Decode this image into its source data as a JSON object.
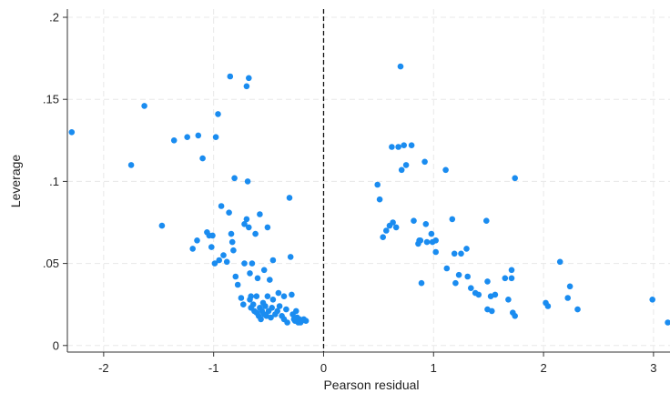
{
  "chart_data": {
    "type": "scatter",
    "title": "",
    "xlabel": "Pearson residual",
    "ylabel": "Leverage",
    "xlim": [
      -2.33,
      3.15
    ],
    "ylim": [
      -0.004,
      0.205
    ],
    "x_ticks": [
      -2,
      -1,
      0,
      1,
      2,
      3
    ],
    "x_tick_labels": [
      "-2",
      "-1",
      "0",
      "1",
      "2",
      "3"
    ],
    "y_ticks": [
      0,
      0.05,
      0.1,
      0.15,
      0.2
    ],
    "y_tick_labels": [
      "0",
      ".05",
      ".1",
      ".15",
      ".2"
    ],
    "grid": true,
    "reference_line_x": 0,
    "marker_color": "#1a8cf0",
    "points": [
      [
        -2.29,
        0.13
      ],
      [
        -1.75,
        0.11
      ],
      [
        -1.63,
        0.146
      ],
      [
        -1.47,
        0.073
      ],
      [
        -1.36,
        0.125
      ],
      [
        -1.24,
        0.127
      ],
      [
        -1.19,
        0.059
      ],
      [
        -1.15,
        0.064
      ],
      [
        -1.14,
        0.128
      ],
      [
        -1.1,
        0.114
      ],
      [
        -1.06,
        0.069
      ],
      [
        -1.04,
        0.067
      ],
      [
        -1.02,
        0.06
      ],
      [
        -1.01,
        0.067
      ],
      [
        -0.99,
        0.05
      ],
      [
        -0.98,
        0.127
      ],
      [
        -0.96,
        0.141
      ],
      [
        -0.95,
        0.052
      ],
      [
        -0.93,
        0.085
      ],
      [
        -0.91,
        0.055
      ],
      [
        -0.88,
        0.051
      ],
      [
        -0.86,
        0.081
      ],
      [
        -0.85,
        0.164
      ],
      [
        -0.84,
        0.068
      ],
      [
        -0.83,
        0.063
      ],
      [
        -0.82,
        0.058
      ],
      [
        -0.81,
        0.102
      ],
      [
        -0.8,
        0.042
      ],
      [
        -0.78,
        0.037
      ],
      [
        -0.75,
        0.029
      ],
      [
        -0.73,
        0.025
      ],
      [
        -0.72,
        0.05
      ],
      [
        -0.72,
        0.074
      ],
      [
        -0.7,
        0.158
      ],
      [
        -0.7,
        0.077
      ],
      [
        -0.69,
        0.1
      ],
      [
        -0.68,
        0.163
      ],
      [
        -0.68,
        0.072
      ],
      [
        -0.67,
        0.044
      ],
      [
        -0.67,
        0.028
      ],
      [
        -0.66,
        0.03
      ],
      [
        -0.66,
        0.023
      ],
      [
        -0.65,
        0.05
      ],
      [
        -0.64,
        0.025
      ],
      [
        -0.63,
        0.021
      ],
      [
        -0.62,
        0.068
      ],
      [
        -0.61,
        0.02
      ],
      [
        -0.61,
        0.03
      ],
      [
        -0.6,
        0.041
      ],
      [
        -0.59,
        0.018
      ],
      [
        -0.58,
        0.08
      ],
      [
        -0.58,
        0.023
      ],
      [
        -0.57,
        0.016
      ],
      [
        -0.56,
        0.021
      ],
      [
        -0.55,
        0.026
      ],
      [
        -0.54,
        0.019
      ],
      [
        -0.54,
        0.046
      ],
      [
        -0.53,
        0.024
      ],
      [
        -0.52,
        0.018
      ],
      [
        -0.51,
        0.072
      ],
      [
        -0.51,
        0.03
      ],
      [
        -0.5,
        0.021
      ],
      [
        -0.49,
        0.04
      ],
      [
        -0.48,
        0.017
      ],
      [
        -0.47,
        0.023
      ],
      [
        -0.46,
        0.028
      ],
      [
        -0.46,
        0.052
      ],
      [
        -0.44,
        0.019
      ],
      [
        -0.42,
        0.021
      ],
      [
        -0.41,
        0.032
      ],
      [
        -0.4,
        0.024
      ],
      [
        -0.38,
        0.018
      ],
      [
        -0.36,
        0.03
      ],
      [
        -0.36,
        0.016
      ],
      [
        -0.34,
        0.022
      ],
      [
        -0.33,
        0.014
      ],
      [
        -0.31,
        0.09
      ],
      [
        -0.3,
        0.054
      ],
      [
        -0.29,
        0.031
      ],
      [
        -0.28,
        0.019
      ],
      [
        -0.27,
        0.016
      ],
      [
        -0.26,
        0.015
      ],
      [
        -0.25,
        0.021
      ],
      [
        -0.24,
        0.017
      ],
      [
        -0.23,
        0.014
      ],
      [
        -0.22,
        0.016
      ],
      [
        -0.21,
        0.014
      ],
      [
        -0.2,
        0.015
      ],
      [
        -0.18,
        0.016
      ],
      [
        -0.16,
        0.015
      ],
      [
        0.49,
        0.098
      ],
      [
        0.51,
        0.089
      ],
      [
        0.54,
        0.066
      ],
      [
        0.57,
        0.07
      ],
      [
        0.6,
        0.073
      ],
      [
        0.62,
        0.121
      ],
      [
        0.63,
        0.075
      ],
      [
        0.66,
        0.072
      ],
      [
        0.68,
        0.121
      ],
      [
        0.7,
        0.17
      ],
      [
        0.71,
        0.107
      ],
      [
        0.73,
        0.122
      ],
      [
        0.75,
        0.11
      ],
      [
        0.8,
        0.122
      ],
      [
        0.82,
        0.076
      ],
      [
        0.86,
        0.062
      ],
      [
        0.87,
        0.064
      ],
      [
        0.88,
        0.064
      ],
      [
        0.89,
        0.038
      ],
      [
        0.92,
        0.112
      ],
      [
        0.93,
        0.074
      ],
      [
        0.94,
        0.063
      ],
      [
        0.98,
        0.068
      ],
      [
        0.99,
        0.063
      ],
      [
        1.02,
        0.064
      ],
      [
        1.02,
        0.057
      ],
      [
        1.11,
        0.107
      ],
      [
        1.12,
        0.047
      ],
      [
        1.17,
        0.077
      ],
      [
        1.19,
        0.056
      ],
      [
        1.2,
        0.038
      ],
      [
        1.23,
        0.043
      ],
      [
        1.25,
        0.056
      ],
      [
        1.3,
        0.059
      ],
      [
        1.31,
        0.042
      ],
      [
        1.34,
        0.035
      ],
      [
        1.38,
        0.032
      ],
      [
        1.41,
        0.031
      ],
      [
        1.48,
        0.076
      ],
      [
        1.49,
        0.039
      ],
      [
        1.49,
        0.022
      ],
      [
        1.52,
        0.03
      ],
      [
        1.53,
        0.021
      ],
      [
        1.56,
        0.031
      ],
      [
        1.65,
        0.041
      ],
      [
        1.68,
        0.028
      ],
      [
        1.71,
        0.041
      ],
      [
        1.71,
        0.046
      ],
      [
        1.72,
        0.02
      ],
      [
        1.74,
        0.102
      ],
      [
        1.74,
        0.018
      ],
      [
        2.02,
        0.026
      ],
      [
        2.04,
        0.024
      ],
      [
        2.15,
        0.051
      ],
      [
        2.22,
        0.029
      ],
      [
        2.24,
        0.036
      ],
      [
        2.31,
        0.022
      ],
      [
        2.99,
        0.028
      ],
      [
        3.13,
        0.014
      ]
    ]
  }
}
